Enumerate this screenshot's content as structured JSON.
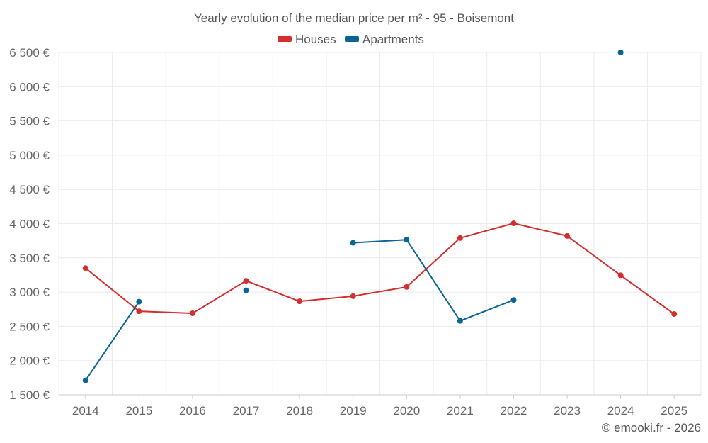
{
  "chart_data": {
    "type": "line",
    "title": "Yearly evolution of the median price per m² - 95 - Boisemont",
    "xlabel": "",
    "ylabel": "",
    "categories": [
      "2014",
      "2015",
      "2016",
      "2017",
      "2018",
      "2019",
      "2020",
      "2021",
      "2022",
      "2023",
      "2024",
      "2025"
    ],
    "ylim": [
      1500,
      6500
    ],
    "yticks": [
      1500,
      2000,
      2500,
      3000,
      3500,
      4000,
      4500,
      5000,
      5500,
      6000,
      6500
    ],
    "ytick_labels": [
      "1 500 €",
      "2 000 €",
      "2 500 €",
      "3 000 €",
      "3 500 €",
      "4 000 €",
      "4 500 €",
      "5 000 €",
      "5 500 €",
      "6 000 €",
      "6 500 €"
    ],
    "grid": true,
    "legend_position": "top-center",
    "series": [
      {
        "name": "Houses",
        "color": "#d32f2f",
        "values": [
          3350,
          2720,
          2690,
          3165,
          2865,
          2940,
          3075,
          3790,
          4005,
          3820,
          3245,
          2680
        ]
      },
      {
        "name": "Apartments",
        "color": "#0a6496",
        "values": [
          1710,
          2860,
          null,
          3025,
          null,
          3720,
          3765,
          2580,
          2885,
          null,
          6500,
          null
        ]
      }
    ],
    "credit": "© emooki.fr - 2026"
  }
}
